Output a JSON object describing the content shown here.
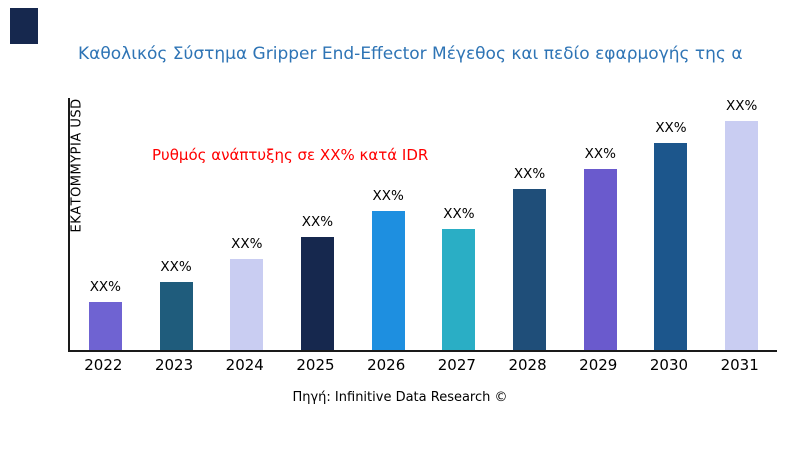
{
  "logo": {
    "color": "#16284E"
  },
  "chart_data": {
    "type": "bar",
    "title": "Καθολικός Σύστημα Gripper End-Effector Μέγεθος και πεδίο εφαρμογής της α",
    "ylabel": "ΕΚΑΤΟΜΜΥΡΙΑ USD",
    "xlabel": "",
    "categories": [
      "2022",
      "2023",
      "2024",
      "2025",
      "2026",
      "2027",
      "2028",
      "2029",
      "2030",
      "2031"
    ],
    "values": [
      19,
      27,
      36,
      45,
      55,
      48,
      64,
      72,
      82,
      91
    ],
    "bar_labels": [
      "XX%",
      "XX%",
      "XX%",
      "XX%",
      "XX%",
      "XX%",
      "XX%",
      "XX%",
      "XX%",
      "XX%"
    ],
    "colors": [
      "#6F63D2",
      "#1F5C7C",
      "#C9CDF2",
      "#16284E",
      "#1E8FE0",
      "#2AAEC5",
      "#1F4E79",
      "#6A5ACD",
      "#1C568C",
      "#C9CDF2"
    ],
    "ylim": [
      0,
      100
    ],
    "grid": false,
    "legend": "none",
    "annotation": {
      "text": "Ρυθμός ανάπτυξης σε XX% κατά IDR",
      "color": "#FF0000"
    },
    "source": "Πηγή: Infinitive Data Research ©",
    "title_color": "#2E74B5"
  }
}
